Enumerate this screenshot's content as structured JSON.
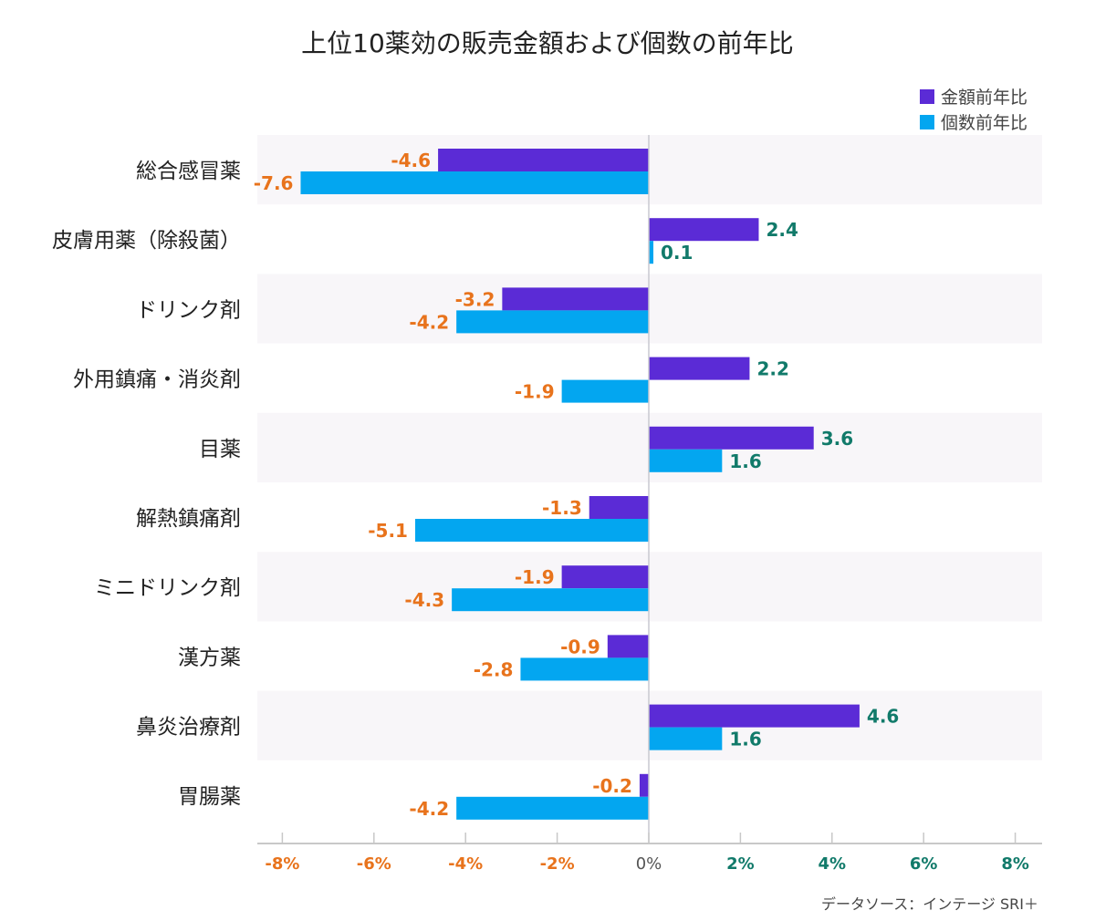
{
  "chart_data": {
    "type": "bar",
    "orientation": "horizontal",
    "title": "上位10薬効の販売金額および個数の前年比",
    "categories": [
      "総合感冒薬",
      "皮膚用薬（除殺菌）",
      "ドリンク剤",
      "外用鎮痛・消炎剤",
      "目薬",
      "解熱鎮痛剤",
      "ミニドリンク剤",
      "漢方薬",
      "鼻炎治療剤",
      "胃腸薬"
    ],
    "series": [
      {
        "name": "金額前年比",
        "color": "#5b2bd6",
        "values": [
          -4.6,
          2.4,
          -3.2,
          2.2,
          3.6,
          -1.3,
          -1.9,
          -0.9,
          4.6,
          -0.2
        ]
      },
      {
        "name": "個数前年比",
        "color": "#03a6f0",
        "values": [
          -7.6,
          0.1,
          -4.2,
          -1.9,
          1.6,
          -5.1,
          -4.3,
          -2.8,
          1.6,
          -4.2
        ]
      }
    ],
    "xlim": [
      -8.5,
      8.5
    ],
    "xticks": [
      -8,
      -6,
      -4,
      -2,
      0,
      2,
      4,
      6,
      8
    ],
    "xtick_labels": [
      "-8%",
      "-6%",
      "-4%",
      "-2%",
      "0%",
      "2%",
      "4%",
      "6%",
      "8%"
    ],
    "legend_position": "top-right",
    "negative_label_color": "#e8731c",
    "positive_label_color": "#117a6a",
    "band_color": "#f8f6f9"
  },
  "source": "データソース：インテージ SRI＋"
}
